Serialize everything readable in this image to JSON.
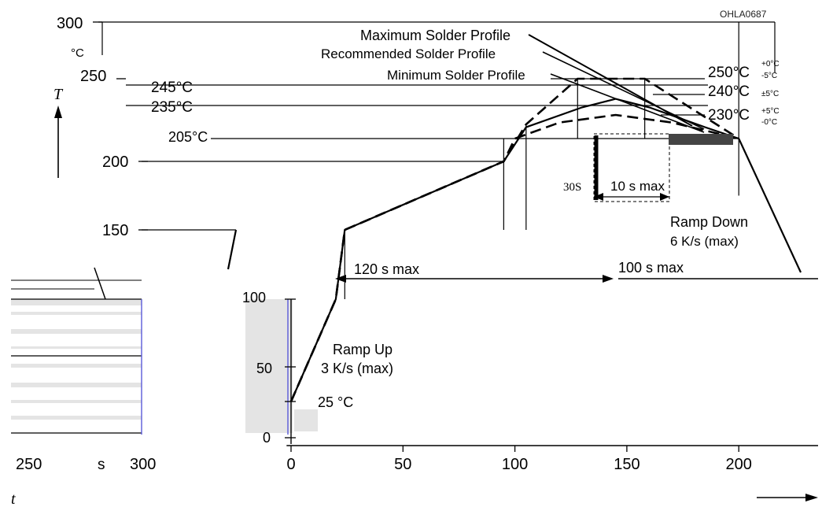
{
  "chart_data": {
    "type": "line",
    "code": "OHLA0687",
    "unit_temp": "°C",
    "unit_time": "s",
    "y_axis_symbol": "T",
    "x_axis_symbol": "t",
    "x_ticks": [
      0,
      50,
      100,
      150,
      200
    ],
    "x_ticks_left": [
      250,
      300
    ],
    "y_ticks": [
      0,
      50,
      100,
      150,
      200,
      250,
      300
    ],
    "temp_labels": [
      "245°C",
      "235°C",
      "205°C",
      "250°C",
      "240°C",
      "230°C",
      "25 °C"
    ],
    "tolerances": [
      "+0°C",
      "-5°C",
      "±5°C",
      "+5°C",
      "-0°C"
    ],
    "annotations": {
      "max_profile": "Maximum Solder Profile",
      "rec_profile": "Recommended Solder Profile",
      "min_profile": "Minimum Solder Profile",
      "ramp_up_1": "Ramp Up",
      "ramp_up_2": "3 K/s (max)",
      "ramp_down_1": "Ramp Down",
      "ramp_down_2": "6 K/s (max)",
      "preheat_time": "120 s max",
      "reflow_time": "100 s max",
      "peak_time": "10 s max",
      "peak_30": "30S"
    },
    "series": [
      {
        "name": "Maximum Solder Profile",
        "points": [
          [
            0,
            25
          ],
          [
            20,
            100
          ],
          [
            24,
            150
          ],
          [
            95,
            200
          ],
          [
            105,
            220
          ],
          [
            128,
            250
          ],
          [
            158,
            250
          ],
          [
            200,
            205
          ]
        ]
      },
      {
        "name": "Recommended Solder Profile",
        "points": [
          [
            0,
            25
          ],
          [
            20,
            100
          ],
          [
            24,
            150
          ],
          [
            95,
            200
          ],
          [
            105,
            217
          ],
          [
            130,
            234
          ],
          [
            145,
            238
          ],
          [
            160,
            234
          ],
          [
            185,
            217
          ],
          [
            200,
            205
          ]
        ]
      },
      {
        "name": "Minimum Solder Profile",
        "points": [
          [
            0,
            25
          ],
          [
            20,
            100
          ],
          [
            24,
            150
          ],
          [
            95,
            200
          ],
          [
            100,
            205
          ],
          [
            120,
            222
          ],
          [
            145,
            230
          ],
          [
            170,
            222
          ],
          [
            200,
            205
          ]
        ]
      }
    ],
    "xlim": [
      0,
      235
    ],
    "ylim": [
      0,
      300
    ]
  }
}
